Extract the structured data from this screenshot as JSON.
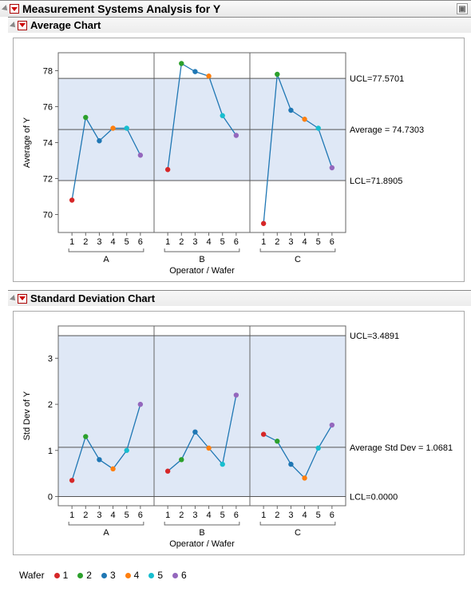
{
  "main_title": "Measurement Systems Analysis for Y",
  "avg": {
    "title": "Average Chart",
    "ylabel": "Average of Y",
    "xlabel": "Operator / Wafer",
    "operators": [
      "A",
      "B",
      "C"
    ],
    "wafers": [
      "1",
      "2",
      "3",
      "4",
      "5",
      "6"
    ],
    "yticks": [
      70,
      72,
      74,
      76,
      78
    ],
    "ymin": 69,
    "ymax": 79,
    "ucl": 77.5701,
    "ucl_label": "UCL=77.5701",
    "avg": 74.7303,
    "avg_label": "Average = 74.7303",
    "lcl": 71.8905,
    "lcl_label": "LCL=71.8905",
    "series": [
      [
        70.8,
        75.4,
        74.1,
        74.8,
        74.8,
        73.3
      ],
      [
        72.5,
        78.4,
        77.95,
        77.7,
        75.5,
        74.4
      ],
      [
        69.5,
        77.8,
        75.8,
        75.3,
        74.8,
        72.6
      ]
    ]
  },
  "std": {
    "title": "Standard Deviation Chart",
    "ylabel": "Std Dev of Y",
    "xlabel": "Operator / Wafer",
    "operators": [
      "A",
      "B",
      "C"
    ],
    "wafers": [
      "1",
      "2",
      "3",
      "4",
      "5",
      "6"
    ],
    "yticks": [
      0,
      1,
      2,
      3
    ],
    "ymin": -0.2,
    "ymax": 3.7,
    "ucl": 3.4891,
    "ucl_label": "UCL=3.4891",
    "avg": 1.0681,
    "avg_label": "Average Std Dev = 1.0681",
    "lcl": 0.0,
    "lcl_label": "LCL=0.0000",
    "series": [
      [
        0.35,
        1.3,
        0.8,
        0.6,
        1.0,
        2.0
      ],
      [
        0.55,
        0.8,
        1.4,
        1.05,
        0.7,
        2.2
      ],
      [
        1.35,
        1.2,
        0.7,
        0.4,
        1.05,
        1.55
      ]
    ]
  },
  "colors": {
    "1": "#d62728",
    "2": "#2ca02c",
    "3": "#1f77b4",
    "4": "#ff7f0e",
    "5": "#17becf",
    "6": "#9467bd"
  },
  "band_fill": "#dfe8f6",
  "line_color": "#1f77b4",
  "legend_title": "Wafer"
}
